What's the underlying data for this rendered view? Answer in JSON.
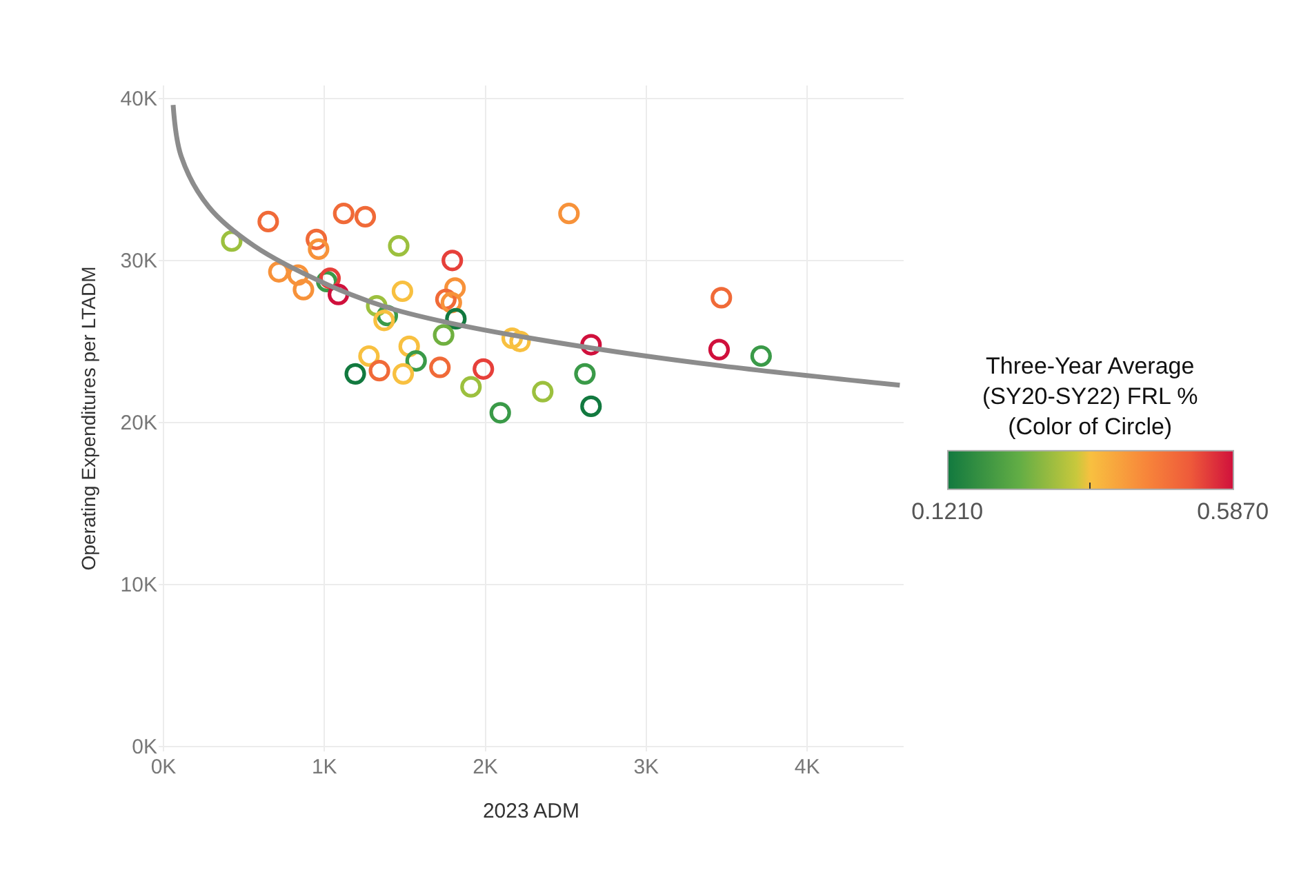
{
  "chart_data": {
    "type": "scatter",
    "xlabel": "2023 ADM",
    "ylabel": "Operating Expenditures per LTADM",
    "clabel": "Three-Year Average\n(SY20-SY22) FRL %\n(Color of Circle)",
    "xlim": [
      -30,
      4600
    ],
    "ylim": [
      -300,
      40800
    ],
    "xticks": [
      {
        "value": 0,
        "label": "0K"
      },
      {
        "value": 1000,
        "label": "1K"
      },
      {
        "value": 2000,
        "label": "2K"
      },
      {
        "value": 3000,
        "label": "3K"
      },
      {
        "value": 4000,
        "label": "4K"
      }
    ],
    "yticks": [
      {
        "value": 0,
        "label": "0K"
      },
      {
        "value": 10000,
        "label": "10K"
      },
      {
        "value": 20000,
        "label": "20K"
      },
      {
        "value": 30000,
        "label": "30K"
      },
      {
        "value": 40000,
        "label": "40K"
      }
    ],
    "clim": [
      0.121,
      0.587
    ],
    "cticks": [
      {
        "value": 0.121,
        "label": "0.1210"
      },
      {
        "value": 0.354,
        "label": null
      },
      {
        "value": 0.587,
        "label": "0.5870"
      }
    ],
    "grid": true,
    "series": [
      {
        "marker": "circle",
        "x": [
          424,
          651,
          950,
          964,
          1120,
          1254,
          1462,
          1795,
          717,
          836,
          870,
          1015,
          1035,
          1087,
          1485,
          1325,
          1391,
          1371,
          1812,
          1755,
          1789,
          1817,
          1741,
          2167,
          2216,
          1277,
          1527,
          1570,
          1192,
          1342,
          1490,
          1718,
          1988,
          1911,
          2357,
          2093,
          2520,
          2657,
          2619,
          2657,
          3467,
          3453,
          3714
        ],
        "values": [
          31200,
          32400,
          31300,
          30700,
          32900,
          32700,
          30900,
          30000,
          29300,
          29100,
          28200,
          28700,
          28900,
          27900,
          28100,
          27200,
          26600,
          26300,
          28300,
          27600,
          27400,
          26400,
          25400,
          25200,
          25000,
          24100,
          24700,
          23800,
          23000,
          23200,
          23000,
          23400,
          23300,
          22200,
          21900,
          20600,
          32900,
          24800,
          23000,
          21000,
          27700,
          24500,
          24100
        ],
        "colors": [
          "#9cc03e",
          "#f06a38",
          "#f06a38",
          "#f7923a",
          "#f06a38",
          "#f06a38",
          "#9cc03e",
          "#e6403a",
          "#f7923a",
          "#f7923a",
          "#f7923a",
          "#3a9a48",
          "#e6403a",
          "#d0103c",
          "#f8c040",
          "#9cc03e",
          "#3a9a48",
          "#f8c040",
          "#f7923a",
          "#f06a38",
          "#f7923a",
          "#12793f",
          "#70b040",
          "#f8c040",
          "#f8c040",
          "#f8c040",
          "#f8c040",
          "#3a9a48",
          "#12793f",
          "#f06a38",
          "#f8c040",
          "#f06a38",
          "#e6403a",
          "#9cc03e",
          "#9cc03e",
          "#3a9a48",
          "#f7923a",
          "#d0103c",
          "#3a9a48",
          "#12793f",
          "#f06a38",
          "#d0103c",
          "#3a9a48"
        ]
      },
      {
        "type": "line",
        "marker": "none",
        "color": "#8c8c8c",
        "x": [
          60,
          111,
          282,
          563,
          1021,
          1391,
          1846,
          2657,
          3464,
          4576
        ],
        "values": [
          39600,
          36400,
          33300,
          30900,
          28500,
          27100,
          26000,
          24600,
          23500,
          22300
        ]
      }
    ]
  }
}
